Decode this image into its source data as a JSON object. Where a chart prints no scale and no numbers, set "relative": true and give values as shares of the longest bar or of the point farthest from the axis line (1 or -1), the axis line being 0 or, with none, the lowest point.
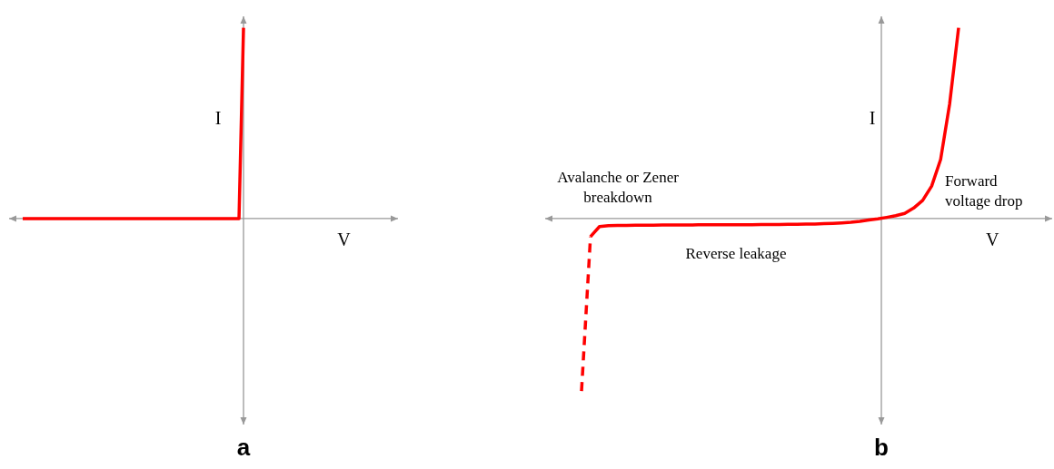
{
  "chart_data": [
    {
      "type": "line",
      "title": "a",
      "xlabel": "V",
      "ylabel": "I",
      "relative": true,
      "categories": [
        null,
        null,
        null,
        null,
        null,
        null,
        null,
        null,
        null,
        null,
        null,
        null,
        null,
        null,
        null,
        null,
        null,
        null,
        null,
        null,
        null,
        null,
        null,
        null,
        null,
        null,
        null,
        null,
        null,
        null,
        null,
        null,
        null,
        null,
        null,
        null,
        null,
        null,
        null,
        null,
        null,
        null,
        null,
        null,
        null,
        null,
        null,
        null,
        null,
        null
      ],
      "series": [
        {
          "color": "#ff0000",
          "line_style": "solid",
          "values": [
            0,
            0,
            0,
            0,
            0,
            0,
            0,
            0,
            0,
            0,
            0,
            0,
            0,
            0,
            0,
            0,
            0,
            0,
            0,
            0,
            0,
            0,
            0,
            0,
            0,
            0,
            0,
            0,
            0,
            0,
            0,
            0,
            0,
            0,
            0,
            0,
            0,
            0,
            0,
            0,
            0,
            0,
            0,
            0,
            0,
            0,
            0,
            0,
            0,
            1
          ]
        }
      ]
    },
    {
      "type": "line",
      "title": "b",
      "xlabel": "V",
      "ylabel": "I",
      "relative": true,
      "annotations": [
        "Avalanche or Zener breakdown",
        "Forward voltage drop",
        "Reverse leakage"
      ],
      "categories": [
        null,
        null,
        null,
        null,
        null,
        null,
        null,
        null,
        null,
        null,
        null,
        null,
        null,
        null,
        null,
        null,
        null,
        null,
        null,
        null,
        null,
        null,
        null,
        null,
        null,
        null,
        null,
        null,
        null,
        null,
        null,
        null,
        null,
        null,
        null,
        null,
        null,
        null,
        null,
        null,
        null,
        null,
        null
      ],
      "series": [
        {
          "color": "#ff0000",
          "line_style": "solid",
          "values": [
            null,
            -0.095,
            -0.042,
            -0.037,
            -0.036,
            -0.036,
            -0.035,
            -0.035,
            -0.035,
            -0.034,
            -0.034,
            -0.034,
            -0.034,
            -0.033,
            -0.033,
            -0.033,
            -0.033,
            -0.033,
            -0.032,
            -0.032,
            -0.031,
            -0.031,
            -0.031,
            -0.03,
            -0.03,
            -0.029,
            -0.029,
            -0.027,
            -0.025,
            -0.023,
            -0.02,
            -0.015,
            -0.008,
            -0.002,
            0.006,
            0.015,
            0.027,
            0.055,
            0.095,
            0.17,
            0.31,
            0.6,
            1
          ]
        },
        {
          "color": "#ff0000",
          "line_style": "dashed",
          "values": [
            -0.905,
            -0.095,
            null,
            null,
            null,
            null,
            null,
            null,
            null,
            null,
            null,
            null,
            null,
            null,
            null,
            null,
            null,
            null,
            null,
            null,
            null,
            null,
            null,
            null,
            null,
            null,
            null,
            null,
            null,
            null,
            null,
            null,
            null,
            null,
            null,
            null,
            null,
            null,
            null,
            null,
            null,
            null,
            null
          ]
        }
      ]
    }
  ]
}
